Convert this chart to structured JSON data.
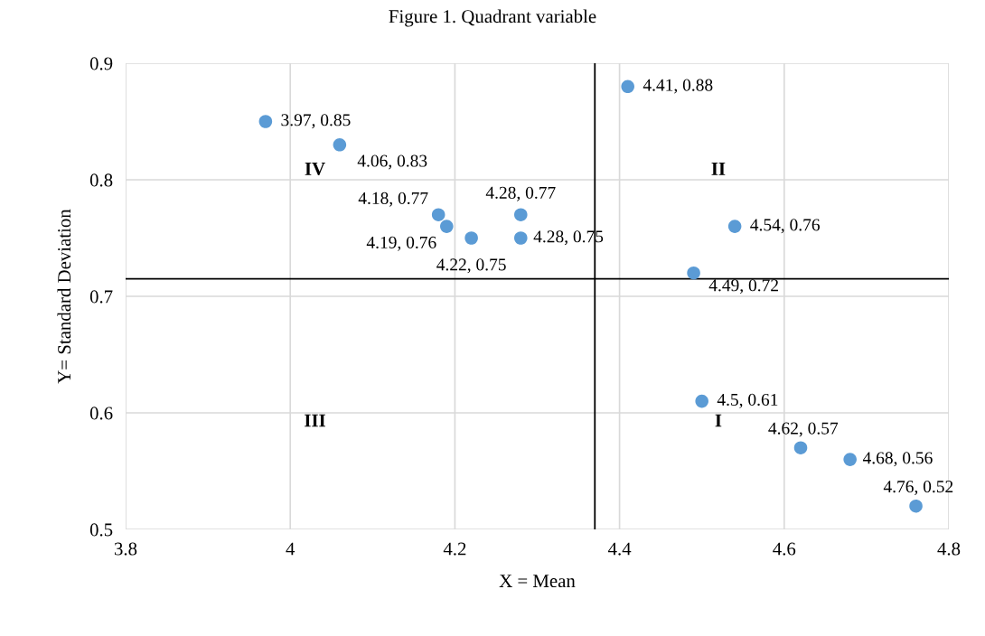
{
  "chart_data": {
    "type": "scatter",
    "title": "Figure 1. Quadrant variable",
    "xlabel": "X = Mean",
    "ylabel": "Y= Standard Deviation",
    "x": [
      3.97,
      4.06,
      4.18,
      4.19,
      4.22,
      4.28,
      4.28,
      4.41,
      4.54,
      4.49,
      4.5,
      4.62,
      4.68,
      4.76
    ],
    "values": [
      0.85,
      0.83,
      0.77,
      0.76,
      0.75,
      0.77,
      0.75,
      0.88,
      0.76,
      0.72,
      0.61,
      0.57,
      0.56,
      0.52
    ],
    "value_labels": [
      "3.97, 0.85",
      "4.06, 0.83",
      "4.18, 0.77",
      "4.19, 0.76",
      "4.22, 0.75",
      "4.28, 0.77",
      "4.28, 0.75",
      "4.41, 0.88",
      "4.54, 0.76",
      "4.49, 0.72",
      "4.5, 0.61",
      "4.62, 0.57",
      "4.68, 0.56",
      "4.76, 0.52"
    ],
    "color": "#5b9bd5",
    "marker": "circle",
    "xlim": [
      3.8,
      4.8
    ],
    "xticks": [
      3.8,
      4,
      4.2,
      4.4,
      4.6,
      4.8
    ],
    "ylim": [
      0.5,
      0.9
    ],
    "yticks": [
      0.5,
      0.6,
      0.7,
      0.8,
      0.9
    ],
    "grid": true,
    "ref_lines": [
      {
        "axis": "x",
        "value": 4.37,
        "color": "#000000"
      },
      {
        "axis": "y",
        "value": 0.715,
        "color": "#000000"
      }
    ],
    "annotations": [
      "IV",
      "II",
      "III",
      "I"
    ]
  }
}
